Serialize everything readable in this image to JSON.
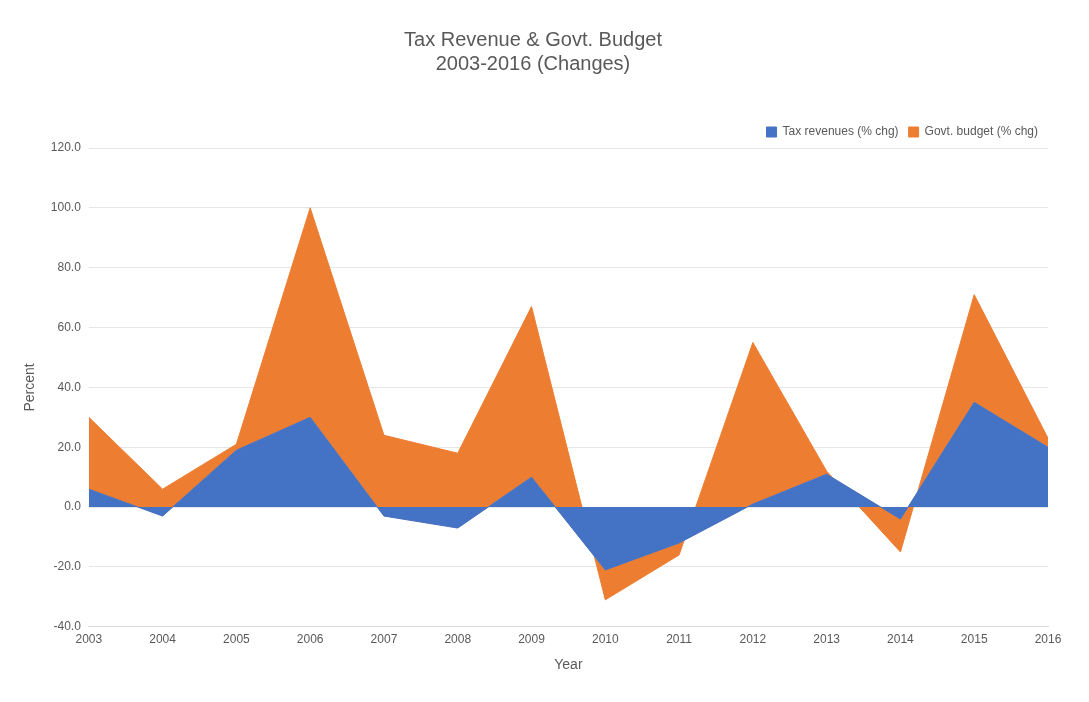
{
  "chart_data": {
    "type": "area",
    "title": "Tax Revenue & Govt. Budget",
    "subtitle": "2003-2016 (Changes)",
    "xlabel": "Year",
    "ylabel": "Percent",
    "categories": [
      "2003",
      "2004",
      "2005",
      "2006",
      "2007",
      "2008",
      "2009",
      "2010",
      "2011",
      "2012",
      "2013",
      "2014",
      "2015",
      "2016"
    ],
    "stacked": true,
    "series": [
      {
        "name": "Tax revenues (% chg)",
        "color": "#4472c4",
        "values": [
          6,
          -3,
          19,
          30,
          -3,
          -7,
          10,
          -21,
          -12,
          1,
          11,
          -4,
          35,
          20
        ]
      },
      {
        "name": "Govt. budget (% chg)",
        "color": "#ed7d31",
        "values": [
          24,
          9,
          2,
          70,
          27,
          25,
          57,
          -10,
          -4,
          54,
          1,
          -11,
          36,
          3
        ]
      }
    ],
    "ylim": [
      -40,
      120
    ],
    "yticks": [
      {
        "value": -40,
        "label": "-40.0"
      },
      {
        "value": -20,
        "label": "-20.0"
      },
      {
        "value": 0,
        "label": "0.0"
      },
      {
        "value": 20,
        "label": "20.0"
      },
      {
        "value": 40,
        "label": "40.0"
      },
      {
        "value": 60,
        "label": "60.0"
      },
      {
        "value": 80,
        "label": "80.0"
      },
      {
        "value": 100,
        "label": "100.0"
      },
      {
        "value": 120,
        "label": "120.0"
      }
    ],
    "grid": "y",
    "legend": "top"
  }
}
